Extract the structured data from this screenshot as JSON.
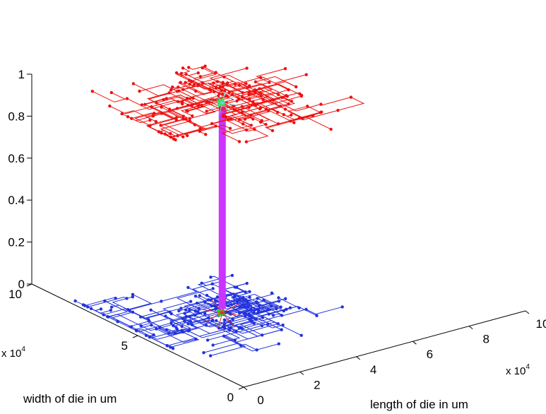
{
  "chart_data": {
    "type": "3d-line",
    "title": "",
    "xlabel": "length of die in um",
    "ylabel": "width of die in um",
    "zlabel": "",
    "x_multiplier": "x 10",
    "x_multiplier_exp": "4",
    "y_multiplier": "x 10",
    "y_multiplier_exp": "4",
    "xlim": [
      0,
      100000
    ],
    "ylim": [
      0,
      100000
    ],
    "zlim": [
      0,
      1
    ],
    "x_ticks": [
      "0",
      "2",
      "4",
      "6",
      "8",
      "10"
    ],
    "y_ticks": [
      "0",
      "5",
      "10"
    ],
    "z_ticks": [
      "0",
      "0.2",
      "0.4",
      "0.6",
      "0.8",
      "1"
    ],
    "series": [
      {
        "layer": 0,
        "z": 0,
        "color": "#2233dd",
        "root": [
          30000,
          50000
        ],
        "nodes": 200
      },
      {
        "layer": 1,
        "z": 1,
        "color": "#ee1111",
        "root": [
          30000,
          50000
        ],
        "nodes": 200
      }
    ],
    "via": {
      "color": "#cc33ff",
      "x": 30000,
      "y": 50000,
      "z": [
        0,
        1
      ]
    },
    "colors": {
      "bottom_tree": "#2233dd",
      "top_tree": "#ee1111",
      "via": "#cc33ff",
      "root_marker": "#33dd33",
      "top_source": "#66dddd",
      "bottom_source": "#dd2222"
    }
  }
}
